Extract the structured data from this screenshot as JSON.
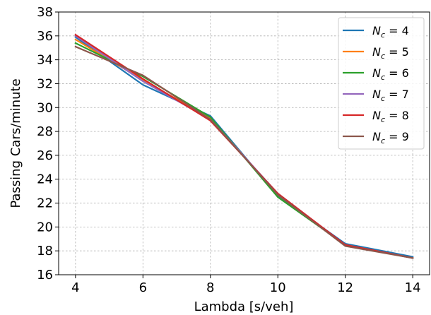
{
  "chart_data": {
    "type": "line",
    "title": "",
    "xlabel": "Lambda [s/veh]",
    "ylabel": "Passing Cars/minute",
    "x": [
      4,
      6,
      8,
      10,
      12,
      14
    ],
    "xlim": [
      3.5,
      14.5
    ],
    "ylim": [
      16,
      38
    ],
    "xticks": [
      4,
      6,
      8,
      10,
      12,
      14
    ],
    "yticks": [
      16,
      18,
      20,
      22,
      24,
      26,
      28,
      30,
      32,
      34,
      36,
      38
    ],
    "grid": true,
    "legend_position": "top-right",
    "series": [
      {
        "name": "Nc = 4",
        "symbol": "N",
        "subscript": "c",
        "value_label": "4",
        "color": "#1f77b4",
        "values": [
          35.9,
          31.9,
          29.3,
          22.6,
          18.6,
          17.5
        ]
      },
      {
        "name": "Nc = 5",
        "symbol": "N",
        "subscript": "c",
        "value_label": "5",
        "color": "#ff7f0e",
        "values": [
          35.7,
          32.3,
          29.1,
          22.7,
          18.5,
          17.4
        ]
      },
      {
        "name": "Nc = 6",
        "symbol": "N",
        "subscript": "c",
        "value_label": "6",
        "color": "#2ca02c",
        "values": [
          35.4,
          32.6,
          29.2,
          22.5,
          18.5,
          17.4
        ]
      },
      {
        "name": "Nc = 7",
        "symbol": "N",
        "subscript": "c",
        "value_label": "7",
        "color": "#9467bd",
        "values": [
          36.0,
          32.2,
          29.0,
          22.8,
          18.5,
          17.4
        ]
      },
      {
        "name": "Nc = 8",
        "symbol": "N",
        "subscript": "c",
        "value_label": "8",
        "color": "#d62728",
        "values": [
          36.1,
          32.4,
          28.9,
          22.8,
          18.5,
          17.4
        ]
      },
      {
        "name": "Nc = 9",
        "symbol": "N",
        "subscript": "c",
        "value_label": "9",
        "color": "#8c564b",
        "values": [
          35.1,
          32.7,
          29.0,
          22.7,
          18.4,
          17.4
        ]
      }
    ]
  }
}
